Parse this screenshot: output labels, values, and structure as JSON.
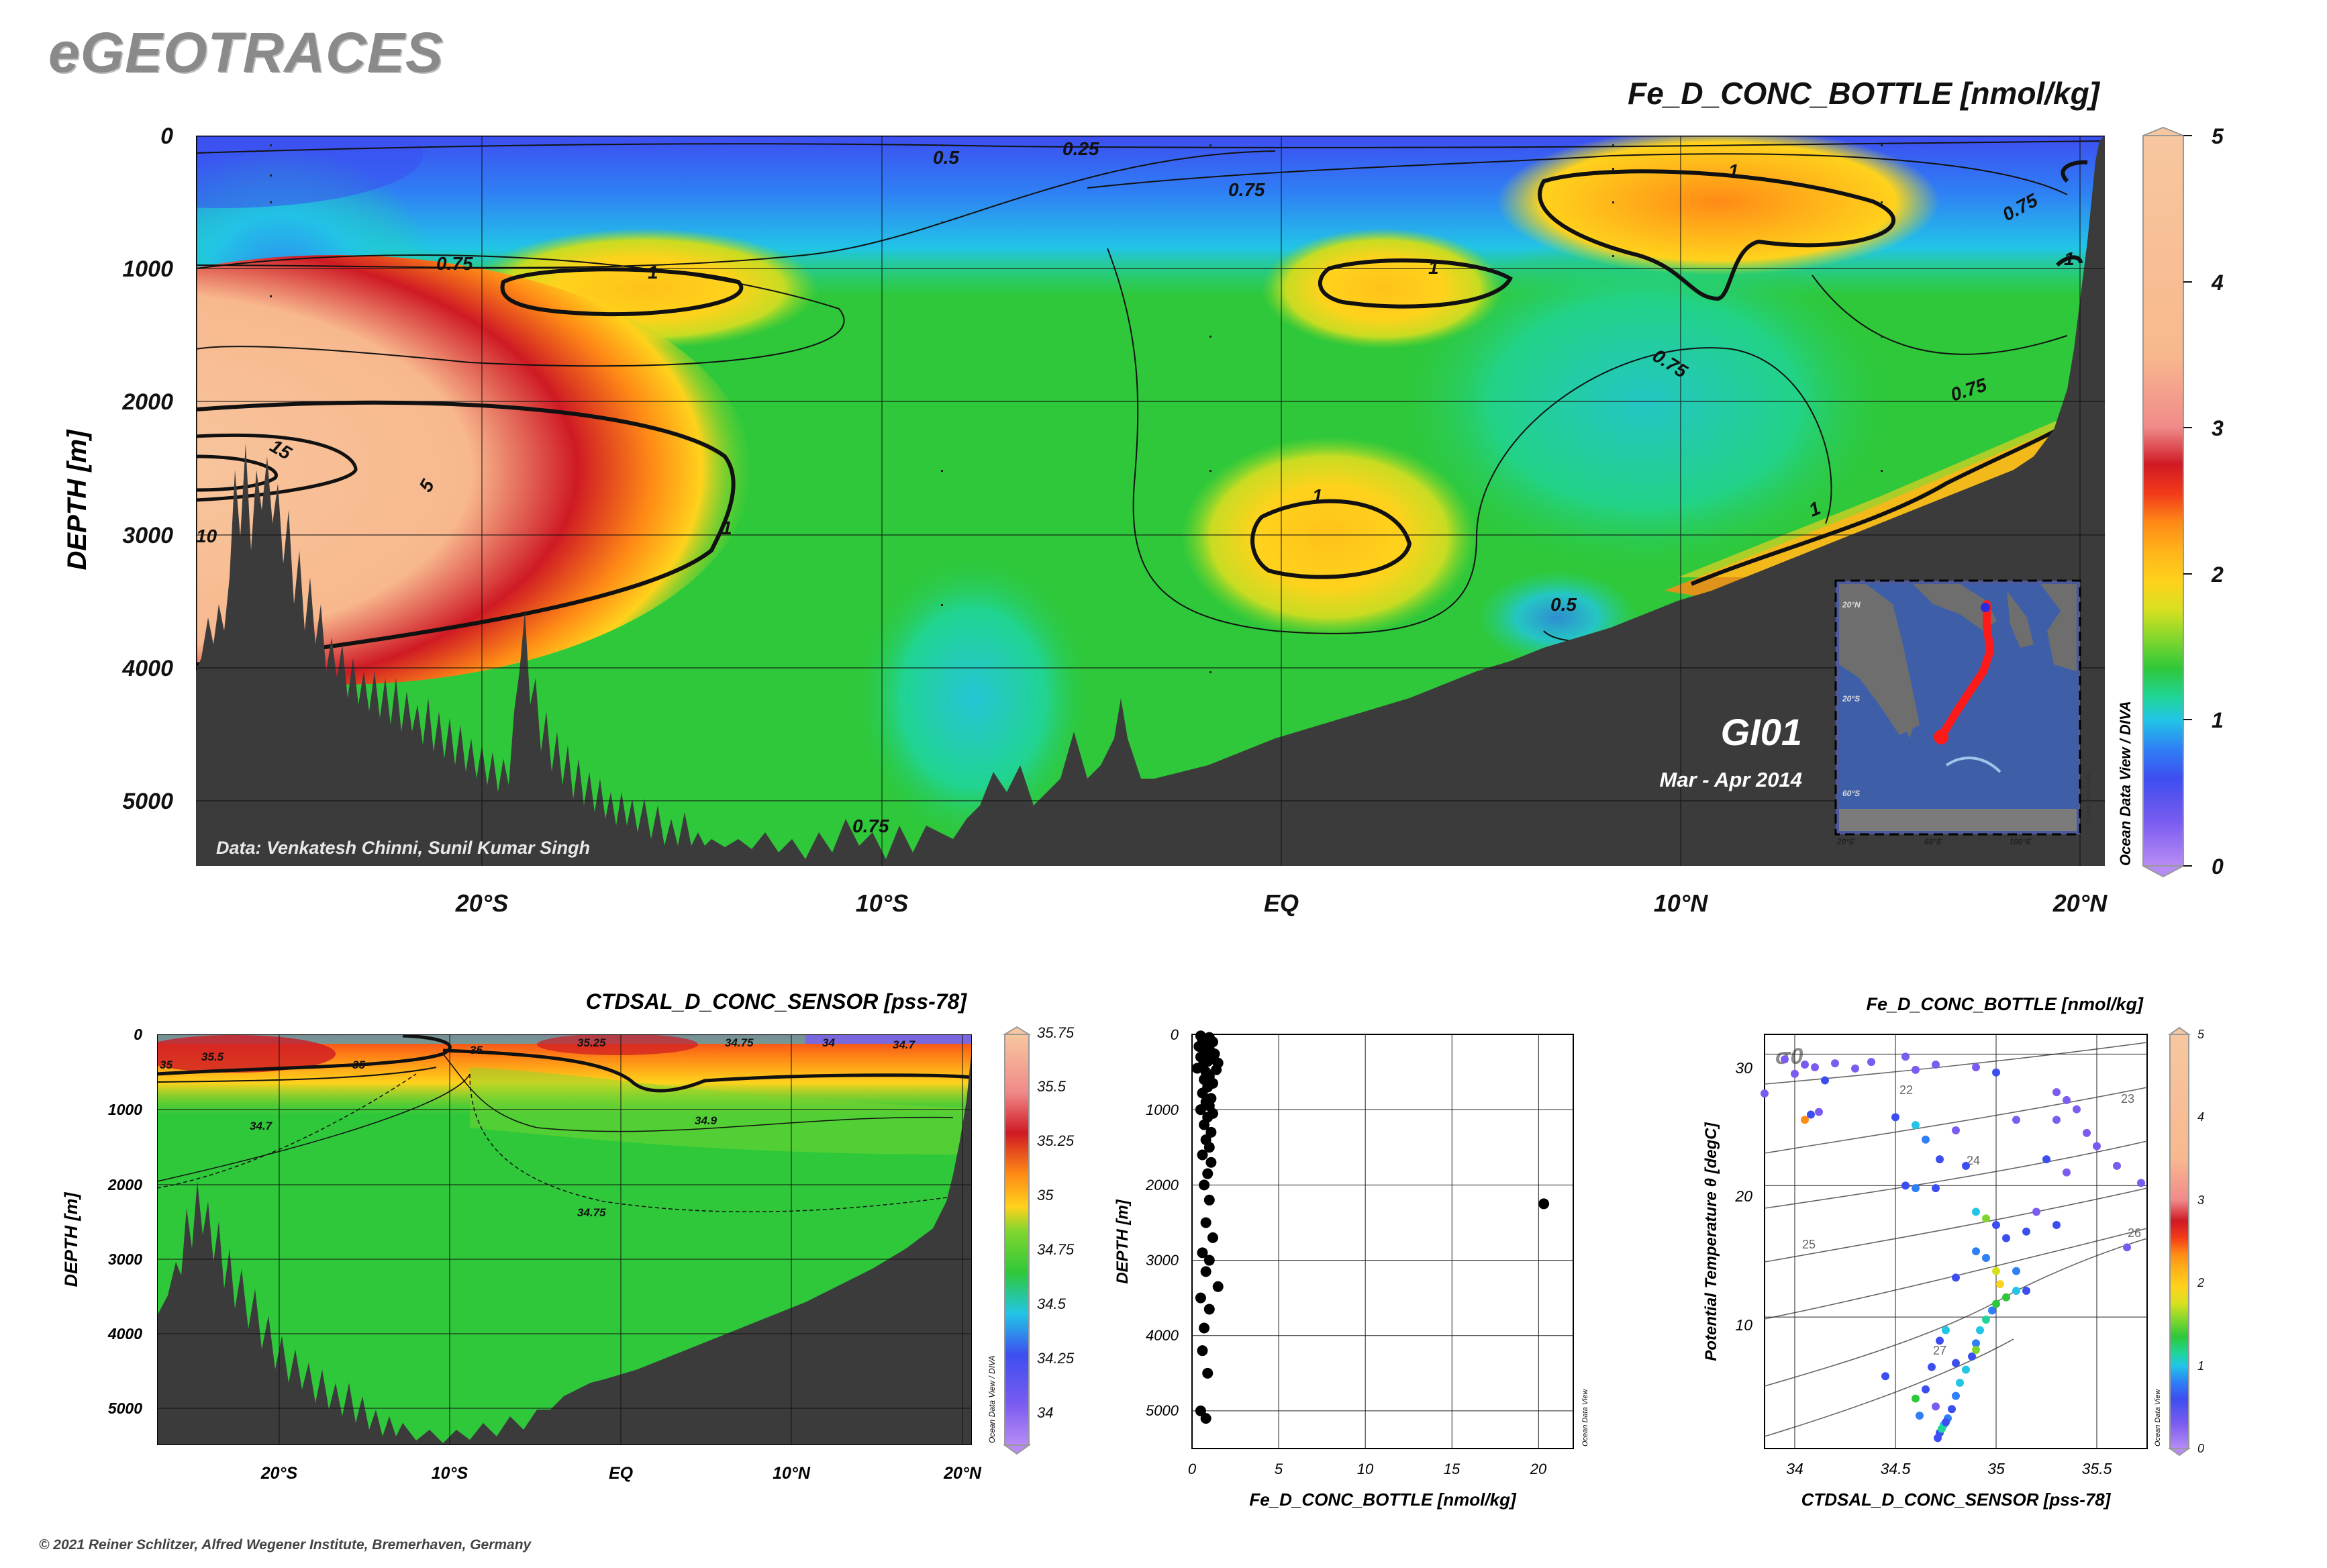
{
  "brand": "eGEOTRACES",
  "copyright": "© 2021 Reiner Schlitzer, Alfred Wegener Institute, Bremerhaven, Germany",
  "colors": {
    "land": "#3b3b3b",
    "contour": "#111111",
    "palette": [
      "#b88cf5",
      "#7a5cf0",
      "#3d4ef0",
      "#2f7ff5",
      "#22c5e6",
      "#1fd59a",
      "#2fc83a",
      "#7fd62e",
      "#d7e020",
      "#ffd21c",
      "#ffb41a",
      "#ff8a16",
      "#f23a1a",
      "#cf1a24",
      "#f08a8a",
      "#f8b88e",
      "#f7c79f"
    ]
  },
  "chart_data": [
    {
      "type": "heatmap",
      "title": "Fe_D_CONC_BOTTLE [nmol/kg]",
      "ylabel": "DEPTH [m]",
      "xlabel": "",
      "x_ticks": [
        "20°S",
        "10°S",
        "EQ",
        "10°N",
        "20°N"
      ],
      "y_ticks": [
        "0",
        "1000",
        "2000",
        "3000",
        "4000",
        "5000"
      ],
      "ylim": [
        5500,
        0
      ],
      "xlim_deg": [
        -27.1,
        20.5
      ],
      "colorbar": {
        "label_ticks": [
          "0",
          "1",
          "2",
          "3",
          "4",
          "5"
        ],
        "range": [
          0,
          5
        ],
        "side_label": "Ocean Data View / DIVA"
      },
      "contour_labels": [
        "0.25",
        "0.5",
        "0.75",
        "0.75",
        "0.75",
        "0.75",
        "0.75",
        "0.75",
        "0.5",
        "1",
        "1",
        "1",
        "1",
        "1",
        "1",
        "1",
        "5",
        "15",
        "10"
      ],
      "annotations": {
        "cruise": "GI01",
        "period": "Mar - Apr 2014",
        "credit": "Data: Venkatesh Chinni, Sunil Kumar Singh"
      },
      "inset_map": {
        "lat_ticks": [
          "20°N",
          "20°S",
          "60°S"
        ],
        "lon_ticks": [
          "20°E",
          "60°E",
          "100°E"
        ],
        "side_label": "Ocean Data View"
      }
    },
    {
      "type": "heatmap",
      "title": "CTDSAL_D_CONC_SENSOR [pss-78]",
      "ylabel": "DEPTH [m]",
      "x_ticks": [
        "20°S",
        "10°S",
        "EQ",
        "10°N",
        "20°N"
      ],
      "y_ticks": [
        "0",
        "1000",
        "2000",
        "3000",
        "4000",
        "5000"
      ],
      "ylim": [
        5500,
        0
      ],
      "colorbar": {
        "label_ticks": [
          "35.75",
          "35.5",
          "35.25",
          "35",
          "34.75",
          "34.5",
          "34.25",
          "34"
        ],
        "range": [
          33.9,
          35.8
        ],
        "side_label": "Ocean Data View / DIVA"
      },
      "contour_labels": [
        "35.5",
        "35",
        "35",
        "35.25",
        "34.75",
        "34",
        "34.7",
        "34.9",
        "34.7",
        "34.75",
        "35"
      ]
    },
    {
      "type": "scatter",
      "xlabel": "Fe_D_CONC_BOTTLE [nmol/kg]",
      "ylabel": "DEPTH [m]",
      "xlim": [
        0,
        22
      ],
      "ylim": [
        5500,
        0
      ],
      "x_ticks": [
        "0",
        "5",
        "10",
        "15",
        "20"
      ],
      "y_ticks": [
        "0",
        "1000",
        "2000",
        "3000",
        "4000",
        "5000"
      ],
      "side_label": "Ocean Data View",
      "points": [
        [
          0.5,
          20
        ],
        [
          1.0,
          40
        ],
        [
          0.6,
          70
        ],
        [
          1.2,
          100
        ],
        [
          0.8,
          130
        ],
        [
          0.4,
          160
        ],
        [
          1.0,
          200
        ],
        [
          0.7,
          240
        ],
        [
          1.3,
          260
        ],
        [
          0.5,
          300
        ],
        [
          1.1,
          330
        ],
        [
          0.9,
          360
        ],
        [
          1.5,
          380
        ],
        [
          0.6,
          420
        ],
        [
          0.3,
          450
        ],
        [
          1.4,
          470
        ],
        [
          0.8,
          500
        ],
        [
          1.0,
          560
        ],
        [
          0.7,
          600
        ],
        [
          1.2,
          650
        ],
        [
          0.9,
          700
        ],
        [
          0.6,
          780
        ],
        [
          1.1,
          850
        ],
        [
          0.8,
          900
        ],
        [
          1.0,
          950
        ],
        [
          0.5,
          1000
        ],
        [
          1.2,
          1050
        ],
        [
          0.9,
          1100
        ],
        [
          0.7,
          1200
        ],
        [
          1.1,
          1300
        ],
        [
          0.8,
          1400
        ],
        [
          1.0,
          1500
        ],
        [
          0.6,
          1600
        ],
        [
          1.1,
          1700
        ],
        [
          0.9,
          1850
        ],
        [
          0.7,
          2000
        ],
        [
          1.0,
          2200
        ],
        [
          0.8,
          2500
        ],
        [
          1.2,
          2700
        ],
        [
          0.6,
          2900
        ],
        [
          1.0,
          3000
        ],
        [
          0.8,
          3150
        ],
        [
          1.5,
          3350
        ],
        [
          0.5,
          3500
        ],
        [
          1.0,
          3650
        ],
        [
          0.7,
          3900
        ],
        [
          0.6,
          4200
        ],
        [
          0.9,
          4500
        ],
        [
          0.5,
          5000
        ],
        [
          0.8,
          5100
        ],
        [
          20.3,
          2250
        ]
      ]
    },
    {
      "type": "scatter",
      "title": "Fe_D_CONC_BOTTLE [nmol/kg]",
      "xlabel": "CTDSAL_D_CONC_SENSOR [pss-78]",
      "ylabel": "Potential Temperature θ [degC]",
      "xlim": [
        33.85,
        35.75
      ],
      "ylim": [
        0,
        31.5
      ],
      "x_ticks": [
        "34",
        "34.5",
        "35",
        "35.5"
      ],
      "y_ticks": [
        "10",
        "20",
        "30"
      ],
      "isopycnal_symbol": "σ0",
      "isopycnal_labels": [
        "22",
        "23",
        "24",
        "25",
        "26",
        "27"
      ],
      "colorbar": {
        "label_ticks": [
          "0",
          "1",
          "2",
          "3",
          "4",
          "5"
        ],
        "range": [
          0,
          5
        ],
        "side_label": "Ocean Data View"
      },
      "points": [
        [
          33.85,
          27.0,
          0.2
        ],
        [
          33.95,
          29.6,
          0.3
        ],
        [
          34.0,
          28.5,
          0.2
        ],
        [
          34.05,
          29.2,
          0.3
        ],
        [
          34.1,
          29.0,
          0.2
        ],
        [
          34.15,
          28.0,
          0.4
        ],
        [
          34.2,
          29.3,
          0.2
        ],
        [
          34.3,
          28.9,
          0.2
        ],
        [
          34.38,
          29.4,
          0.3
        ],
        [
          34.55,
          29.8,
          0.2
        ],
        [
          34.6,
          28.8,
          0.2
        ],
        [
          34.7,
          29.2,
          0.3
        ],
        [
          34.9,
          29.0,
          0.2
        ],
        [
          35.0,
          28.6,
          0.4
        ],
        [
          34.05,
          25.0,
          2.2
        ],
        [
          34.08,
          25.4,
          0.5
        ],
        [
          34.12,
          25.6,
          0.3
        ],
        [
          34.5,
          25.2,
          0.6
        ],
        [
          34.6,
          24.6,
          0.9
        ],
        [
          34.65,
          23.5,
          0.8
        ],
        [
          34.72,
          22.0,
          0.6
        ],
        [
          34.8,
          24.2,
          0.3
        ],
        [
          34.85,
          21.5,
          0.6
        ],
        [
          34.55,
          20.0,
          0.5
        ],
        [
          34.6,
          19.8,
          0.8
        ],
        [
          34.7,
          19.8,
          0.4
        ],
        [
          34.9,
          18.0,
          1.0
        ],
        [
          34.95,
          17.5,
          1.4
        ],
        [
          35.0,
          17.0,
          0.6
        ],
        [
          35.05,
          16.0,
          0.4
        ],
        [
          35.15,
          16.5,
          0.5
        ],
        [
          35.2,
          18.0,
          0.3
        ],
        [
          35.3,
          17.0,
          0.6
        ],
        [
          35.35,
          21.0,
          0.3
        ],
        [
          35.3,
          25.0,
          0.2
        ],
        [
          35.35,
          26.5,
          0.3
        ],
        [
          35.4,
          25.8,
          0.2
        ],
        [
          35.45,
          24.0,
          0.2
        ],
        [
          35.5,
          23.0,
          0.3
        ],
        [
          35.6,
          21.5,
          0.2
        ],
        [
          35.72,
          20.2,
          0.2
        ],
        [
          35.65,
          15.3,
          0.3
        ],
        [
          35.3,
          27.1,
          0.2
        ],
        [
          35.1,
          25.0,
          0.2
        ],
        [
          35.25,
          22.0,
          0.4
        ],
        [
          34.95,
          14.5,
          0.7
        ],
        [
          35.0,
          13.5,
          1.6
        ],
        [
          35.02,
          12.5,
          1.9
        ],
        [
          35.05,
          11.5,
          1.2
        ],
        [
          35.1,
          12.0,
          0.9
        ],
        [
          35.0,
          11.0,
          1.3
        ],
        [
          34.98,
          10.5,
          0.8
        ],
        [
          34.95,
          9.8,
          1.1
        ],
        [
          34.92,
          9.0,
          0.9
        ],
        [
          34.9,
          8.0,
          0.8
        ],
        [
          34.88,
          7.0,
          0.6
        ],
        [
          34.85,
          6.0,
          0.9
        ],
        [
          34.82,
          5.0,
          1.0
        ],
        [
          34.8,
          4.0,
          0.7
        ],
        [
          34.78,
          3.0,
          0.6
        ],
        [
          34.76,
          2.3,
          0.8
        ],
        [
          34.74,
          1.8,
          0.9
        ],
        [
          34.72,
          1.2,
          0.5
        ],
        [
          34.71,
          0.8,
          0.6
        ],
        [
          34.73,
          1.5,
          1.1
        ],
        [
          34.75,
          2.0,
          0.4
        ],
        [
          34.7,
          3.2,
          0.3
        ],
        [
          34.65,
          4.5,
          0.5
        ],
        [
          34.6,
          3.8,
          1.3
        ],
        [
          34.62,
          2.5,
          0.7
        ],
        [
          34.68,
          6.2,
          0.4
        ],
        [
          34.8,
          6.5,
          0.5
        ],
        [
          34.9,
          7.5,
          1.4
        ],
        [
          34.75,
          9.0,
          0.9
        ],
        [
          34.72,
          8.2,
          0.6
        ],
        [
          34.45,
          5.5,
          0.5
        ],
        [
          34.8,
          13.0,
          0.6
        ],
        [
          34.9,
          15.0,
          0.7
        ],
        [
          35.1,
          13.5,
          0.8
        ],
        [
          35.15,
          12.0,
          0.6
        ]
      ]
    }
  ]
}
